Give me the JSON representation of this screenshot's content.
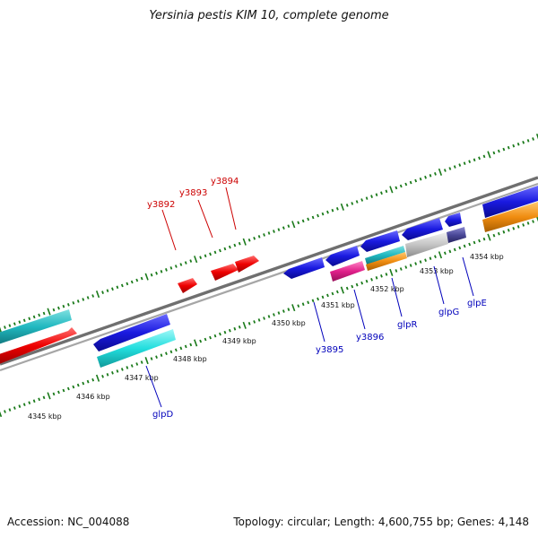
{
  "title": "Yersinia pestis KIM 10, complete genome",
  "accession": "Accession: NC_004088",
  "summary": "Topology: circular; Length: 4,600,755 bp; Genes: 4,148",
  "colors": {
    "backbone": "#8a8a8a",
    "tick": "#1a7a1a",
    "forward_label": "#cc0000",
    "reverse_label": "#0000bb"
  },
  "scale_labels": [
    "4345 kbp",
    "4346 kbp",
    "4347 kbp",
    "4348 kbp",
    "4349 kbp",
    "4350 kbp",
    "4351 kbp",
    "4352 kbp",
    "4353 kbp",
    "4354 kbp"
  ],
  "genes": [
    {
      "name": "y3892",
      "strand": "forward",
      "color": "#ee0000"
    },
    {
      "name": "y3893",
      "strand": "forward",
      "color": "#ee0000"
    },
    {
      "name": "y3894",
      "strand": "forward",
      "color": "#ee0000"
    },
    {
      "name": "glpD",
      "strand": "reverse",
      "color": "#1a1acc"
    },
    {
      "name": "y3895",
      "strand": "reverse",
      "color": "#1a1acc"
    },
    {
      "name": "y3896",
      "strand": "reverse",
      "color": "#1a1acc"
    },
    {
      "name": "glpR",
      "strand": "reverse",
      "color": "#1a1acc"
    },
    {
      "name": "glpG",
      "strand": "reverse",
      "color": "#1a1acc"
    },
    {
      "name": "glpE",
      "strand": "reverse",
      "color": "#1a1acc"
    }
  ]
}
